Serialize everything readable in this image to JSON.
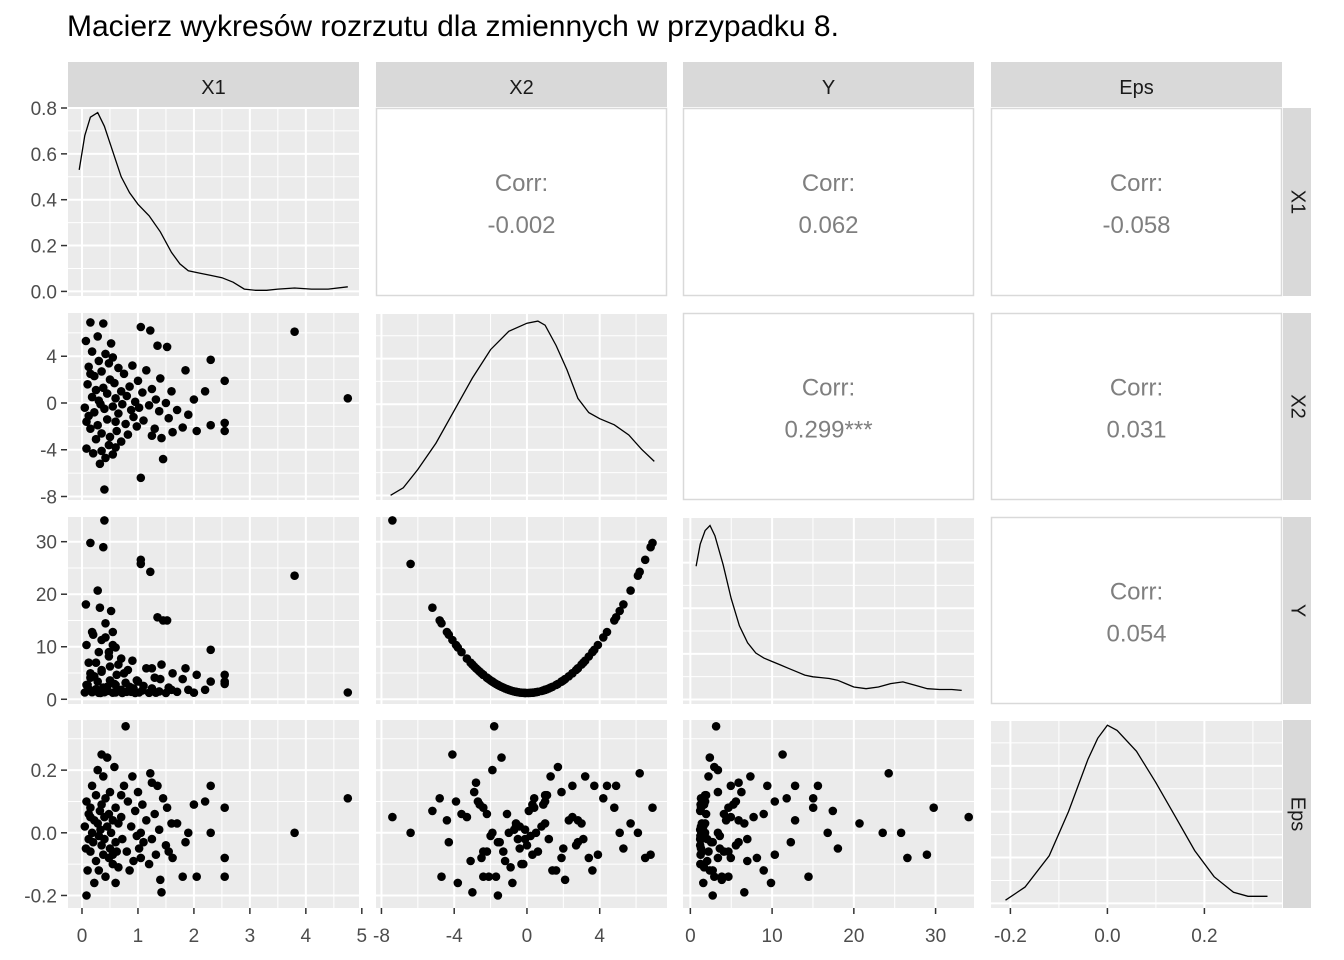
{
  "page": {
    "title": "Macierz wykresów rozrzutu dla zmiennych w przypadku 8."
  },
  "colors": {
    "panel_bg": "#ebebeb",
    "grid": "#ffffff",
    "strip_bg": "#d9d9d9",
    "point": "#000000",
    "corr_text": "#7f7f7f",
    "axis_text": "#4d4d4d"
  },
  "chart_data": {
    "type": "scatter",
    "variables": [
      "X1",
      "X2",
      "Y",
      "Eps"
    ],
    "ranges": {
      "X1": [
        -0.25,
        4.95
      ],
      "X2": [
        -8.3,
        7.7
      ],
      "Y": [
        -0.9,
        34.7
      ],
      "Eps": [
        -0.24,
        0.36
      ]
    },
    "density_range": [
      -0.02,
      0.8
    ],
    "ticks": {
      "X1": [
        "0",
        "1",
        "2",
        "3",
        "4",
        "5"
      ],
      "X2": [
        "-8",
        "-4",
        "0",
        "4"
      ],
      "Y": [
        "0",
        "10",
        "20",
        "30"
      ],
      "Eps": [
        "-0.2",
        "0.0",
        "0.2"
      ],
      "density": [
        "0.0",
        "0.2",
        "0.4",
        "0.6",
        "0.8"
      ]
    },
    "correlations": [
      {
        "row": "X1",
        "col": "X2",
        "label": "Corr:",
        "value": "-0.002"
      },
      {
        "row": "X1",
        "col": "Y",
        "label": "Corr:",
        "value": "0.062"
      },
      {
        "row": "X1",
        "col": "Eps",
        "label": "Corr:",
        "value": "-0.058"
      },
      {
        "row": "X2",
        "col": "Y",
        "label": "Corr:",
        "value": "0.299***"
      },
      {
        "row": "X2",
        "col": "Eps",
        "label": "Corr:",
        "value": "0.031"
      },
      {
        "row": "Y",
        "col": "Eps",
        "label": "Corr:",
        "value": "0.054"
      }
    ],
    "density": {
      "X1": [
        [
          -0.05,
          0.53
        ],
        [
          0.05,
          0.68
        ],
        [
          0.15,
          0.76
        ],
        [
          0.28,
          0.78
        ],
        [
          0.4,
          0.72
        ],
        [
          0.55,
          0.61
        ],
        [
          0.7,
          0.5
        ],
        [
          0.85,
          0.43
        ],
        [
          1.0,
          0.38
        ],
        [
          1.2,
          0.33
        ],
        [
          1.4,
          0.26
        ],
        [
          1.6,
          0.17
        ],
        [
          1.75,
          0.12
        ],
        [
          1.9,
          0.09
        ],
        [
          2.1,
          0.08
        ],
        [
          2.3,
          0.07
        ],
        [
          2.5,
          0.06
        ],
        [
          2.7,
          0.04
        ],
        [
          2.9,
          0.01
        ],
        [
          3.1,
          0.005
        ],
        [
          3.3,
          0.005
        ],
        [
          3.5,
          0.01
        ],
        [
          3.8,
          0.015
        ],
        [
          4.1,
          0.01
        ],
        [
          4.4,
          0.01
        ],
        [
          4.75,
          0.02
        ]
      ],
      "X2": [
        [
          -7.5,
          0.003
        ],
        [
          -6.8,
          0.04
        ],
        [
          -6.0,
          0.13
        ],
        [
          -5.0,
          0.26
        ],
        [
          -4.0,
          0.42
        ],
        [
          -3.0,
          0.58
        ],
        [
          -2.0,
          0.72
        ],
        [
          -1.0,
          0.81
        ],
        [
          0,
          0.85
        ],
        [
          0.6,
          0.86
        ],
        [
          1.0,
          0.84
        ],
        [
          1.6,
          0.74
        ],
        [
          2.2,
          0.62
        ],
        [
          2.8,
          0.48
        ],
        [
          3.4,
          0.41
        ],
        [
          4.0,
          0.38
        ],
        [
          4.8,
          0.35
        ],
        [
          5.6,
          0.3
        ],
        [
          6.3,
          0.23
        ],
        [
          7.0,
          0.17
        ]
      ],
      "Y": [
        [
          0.7,
          0.79
        ],
        [
          1.2,
          0.92
        ],
        [
          1.8,
          1.0
        ],
        [
          2.4,
          1.03
        ],
        [
          3.0,
          0.97
        ],
        [
          4.0,
          0.8
        ],
        [
          5.0,
          0.6
        ],
        [
          6.0,
          0.44
        ],
        [
          7.0,
          0.34
        ],
        [
          8.0,
          0.28
        ],
        [
          9.0,
          0.25
        ],
        [
          10.0,
          0.23
        ],
        [
          11.0,
          0.21
        ],
        [
          12.0,
          0.19
        ],
        [
          13.0,
          0.17
        ],
        [
          14.0,
          0.15
        ],
        [
          15.0,
          0.14
        ],
        [
          16.0,
          0.135
        ],
        [
          17.0,
          0.13
        ],
        [
          18.0,
          0.12
        ],
        [
          19.0,
          0.1
        ],
        [
          20.0,
          0.08
        ],
        [
          21.5,
          0.07
        ],
        [
          23.0,
          0.08
        ],
        [
          24.5,
          0.1
        ],
        [
          26.0,
          0.11
        ],
        [
          27.5,
          0.09
        ],
        [
          29.0,
          0.07
        ],
        [
          30.5,
          0.065
        ],
        [
          32.0,
          0.065
        ],
        [
          33.2,
          0.06
        ]
      ],
      "Eps": [
        [
          -0.21,
          0.01
        ],
        [
          -0.17,
          0.06
        ],
        [
          -0.12,
          0.18
        ],
        [
          -0.08,
          0.35
        ],
        [
          -0.04,
          0.55
        ],
        [
          -0.02,
          0.63
        ],
        [
          0.0,
          0.68
        ],
        [
          0.02,
          0.66
        ],
        [
          0.06,
          0.58
        ],
        [
          0.1,
          0.46
        ],
        [
          0.14,
          0.33
        ],
        [
          0.18,
          0.2
        ],
        [
          0.22,
          0.1
        ],
        [
          0.26,
          0.04
        ],
        [
          0.29,
          0.025
        ],
        [
          0.33,
          0.025
        ]
      ]
    },
    "points": [
      {
        "x1": 0.05,
        "x2": -0.4,
        "eps": 0.02
      },
      {
        "x1": 0.07,
        "x2": 5.3,
        "eps": -0.05
      },
      {
        "x1": 0.08,
        "x2": -3.9,
        "eps": 0.1
      },
      {
        "x1": 0.1,
        "x2": 1.6,
        "eps": -0.12
      },
      {
        "x1": 0.12,
        "x2": -1.1,
        "eps": 0.06
      },
      {
        "x1": 0.12,
        "x2": 3.1,
        "eps": -0.02
      },
      {
        "x1": 0.15,
        "x2": 6.9,
        "eps": 0.08
      },
      {
        "x1": 0.15,
        "x2": -2.2,
        "eps": -0.06
      },
      {
        "x1": 0.18,
        "x2": 0.5,
        "eps": 0.0
      },
      {
        "x1": 0.18,
        "x2": 4.4,
        "eps": 0.15
      },
      {
        "x1": 0.2,
        "x2": -4.3,
        "eps": -0.03
      },
      {
        "x1": 0.22,
        "x2": 2.3,
        "eps": 0.04
      },
      {
        "x1": 0.22,
        "x2": -0.8,
        "eps": -0.16
      },
      {
        "x1": 0.25,
        "x2": 1.1,
        "eps": 0.12
      },
      {
        "x1": 0.25,
        "x2": -3.1,
        "eps": -0.09
      },
      {
        "x1": 0.28,
        "x2": 5.7,
        "eps": 0.03
      },
      {
        "x1": 0.28,
        "x2": -1.9,
        "eps": 0.2
      },
      {
        "x1": 0.3,
        "x2": 0.2,
        "eps": -0.01
      },
      {
        "x1": 0.3,
        "x2": 3.6,
        "eps": -0.12
      },
      {
        "x1": 0.32,
        "x2": -5.2,
        "eps": 0.07
      },
      {
        "x1": 0.33,
        "x2": -0.1,
        "eps": 0.01
      },
      {
        "x1": 0.35,
        "x2": 2.7,
        "eps": -0.04
      },
      {
        "x1": 0.35,
        "x2": -2.6,
        "eps": 0.09
      },
      {
        "x1": 0.38,
        "x2": 6.8,
        "eps": -0.07
      },
      {
        "x1": 0.38,
        "x2": 1.3,
        "eps": 0.18
      },
      {
        "x1": 0.4,
        "x2": -7.4,
        "eps": 0.05
      },
      {
        "x1": 0.4,
        "x2": -0.5,
        "eps": -0.02
      },
      {
        "x1": 0.42,
        "x2": 4.2,
        "eps": 0.11
      },
      {
        "x1": 0.42,
        "x2": -4.7,
        "eps": -0.14
      },
      {
        "x1": 0.45,
        "x2": 0.8,
        "eps": 0.02
      },
      {
        "x1": 0.45,
        "x2": -1.4,
        "eps": 0.24
      },
      {
        "x1": 0.48,
        "x2": 3.4,
        "eps": -0.08
      },
      {
        "x1": 0.48,
        "x2": -3.6,
        "eps": 0.06
      },
      {
        "x1": 0.5,
        "x2": 2.0,
        "eps": -0.05
      },
      {
        "x1": 0.5,
        "x2": -2.9,
        "eps": 0.13
      },
      {
        "x1": 0.52,
        "x2": 5.1,
        "eps": 0.0
      },
      {
        "x1": 0.55,
        "x2": -0.3,
        "eps": -0.1
      },
      {
        "x1": 0.55,
        "x2": -4.4,
        "eps": 0.04
      },
      {
        "x1": 0.58,
        "x2": 1.7,
        "eps": 0.21
      },
      {
        "x1": 0.6,
        "x2": -1.6,
        "eps": -0.03
      },
      {
        "x1": 0.6,
        "x2": 0.4,
        "eps": 0.08
      },
      {
        "x1": 0.62,
        "x2": -2.4,
        "eps": -0.06
      },
      {
        "x1": 0.65,
        "x2": 3.0,
        "eps": 0.03
      },
      {
        "x1": 0.65,
        "x2": -0.9,
        "eps": -0.11
      },
      {
        "x1": 0.7,
        "x2": 1.0,
        "eps": 0.12
      },
      {
        "x1": 0.7,
        "x2": -3.3,
        "eps": 0.05
      },
      {
        "x1": 0.72,
        "x2": -0.1,
        "eps": -0.02
      },
      {
        "x1": 0.75,
        "x2": 2.5,
        "eps": 0.15
      },
      {
        "x1": 0.78,
        "x2": -1.8,
        "eps": 0.34
      },
      {
        "x1": 0.8,
        "x2": 0.6,
        "eps": -0.06
      },
      {
        "x1": 0.82,
        "x2": -2.7,
        "eps": 0.1
      },
      {
        "x1": 0.85,
        "x2": 1.4,
        "eps": -0.12
      },
      {
        "x1": 0.88,
        "x2": -0.6,
        "eps": 0.02
      },
      {
        "x1": 0.9,
        "x2": 3.2,
        "eps": 0.18
      },
      {
        "x1": 0.92,
        "x2": -1.2,
        "eps": -0.09
      },
      {
        "x1": 0.95,
        "x2": 0.1,
        "eps": 0.07
      },
      {
        "x1": 0.98,
        "x2": -2.0,
        "eps": -0.01
      },
      {
        "x1": 1.0,
        "x2": 1.9,
        "eps": 0.13
      },
      {
        "x1": 1.02,
        "x2": -0.4,
        "eps": -0.05
      },
      {
        "x1": 1.05,
        "x2": -6.4,
        "eps": 0.0
      },
      {
        "x1": 1.05,
        "x2": 6.5,
        "eps": -0.08
      },
      {
        "x1": 1.08,
        "x2": 0.9,
        "eps": 0.09
      },
      {
        "x1": 1.1,
        "x2": -1.5,
        "eps": -0.03
      },
      {
        "x1": 1.15,
        "x2": 2.8,
        "eps": 0.04
      },
      {
        "x1": 1.2,
        "x2": -0.2,
        "eps": -0.1
      },
      {
        "x1": 1.22,
        "x2": 6.2,
        "eps": 0.19
      },
      {
        "x1": 1.25,
        "x2": 1.2,
        "eps": -0.02
      },
      {
        "x1": 1.3,
        "x2": -2.2,
        "eps": 0.06
      },
      {
        "x1": 1.32,
        "x2": 0.3,
        "eps": -0.07
      },
      {
        "x1": 1.35,
        "x2": 4.9,
        "eps": 0.15
      },
      {
        "x1": 1.38,
        "x2": -0.7,
        "eps": 0.01
      },
      {
        "x1": 1.4,
        "x2": 2.1,
        "eps": -0.15
      },
      {
        "x1": 1.42,
        "x2": -3.0,
        "eps": -0.19
      },
      {
        "x1": 1.45,
        "x2": -4.8,
        "eps": 0.11
      },
      {
        "x1": 1.5,
        "x2": 0.0,
        "eps": -0.04
      },
      {
        "x1": 1.52,
        "x2": 4.8,
        "eps": 0.08
      },
      {
        "x1": 1.55,
        "x2": -1.3,
        "eps": -0.06
      },
      {
        "x1": 1.6,
        "x2": 1.0,
        "eps": 0.03
      },
      {
        "x1": 1.62,
        "x2": -2.5,
        "eps": -0.08
      },
      {
        "x1": 1.7,
        "x2": -0.6,
        "eps": 0.03
      },
      {
        "x1": 1.8,
        "x2": -2.1,
        "eps": -0.14
      },
      {
        "x1": 1.85,
        "x2": 2.8,
        "eps": -0.03
      },
      {
        "x1": 1.9,
        "x2": -1.0,
        "eps": 0.0
      },
      {
        "x1": 2.0,
        "x2": 0.3,
        "eps": 0.09
      },
      {
        "x1": 2.05,
        "x2": -2.4,
        "eps": -0.14
      },
      {
        "x1": 2.2,
        "x2": 1.0,
        "eps": 0.1
      },
      {
        "x1": 2.3,
        "x2": 3.7,
        "eps": 0.15
      },
      {
        "x1": 2.3,
        "x2": -1.9,
        "eps": 0.0
      },
      {
        "x1": 2.55,
        "x2": 1.9,
        "eps": -0.08
      },
      {
        "x1": 2.55,
        "x2": -1.7,
        "eps": -0.14
      },
      {
        "x1": 2.55,
        "x2": -2.4,
        "eps": 0.08
      },
      {
        "x1": 3.8,
        "x2": 6.1,
        "eps": 0.0
      },
      {
        "x1": 4.75,
        "x2": 0.4,
        "eps": 0.11
      },
      {
        "x1": 0.08,
        "x2": -1.6,
        "eps": -0.2
      },
      {
        "x1": 0.35,
        "x2": -4.1,
        "eps": 0.25
      },
      {
        "x1": 0.6,
        "x2": -3.8,
        "eps": -0.16
      },
      {
        "x1": 0.15,
        "x2": 2.5,
        "eps": 0.05
      },
      {
        "x1": 0.55,
        "x2": 3.9,
        "eps": -0.07
      },
      {
        "x1": 1.25,
        "x2": -2.8,
        "eps": 0.16
      }
    ]
  }
}
